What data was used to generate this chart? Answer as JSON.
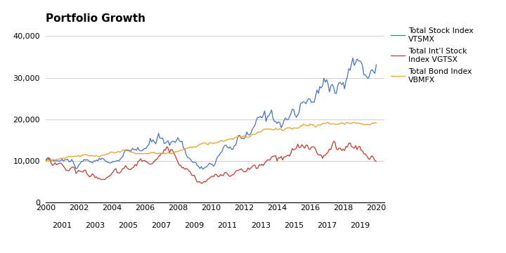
{
  "title": "Portfolio Growth",
  "title_fontsize": 11,
  "title_fontweight": "bold",
  "background_color": "#ffffff",
  "grid_color": "#d0d0d0",
  "ylim": [
    0,
    42000
  ],
  "yticks": [
    0,
    10000,
    20000,
    30000,
    40000
  ],
  "ytick_labels": [
    "0",
    "10,000",
    "20,000",
    "30,000",
    "40,000"
  ],
  "xlim": [
    2000,
    2020.5
  ],
  "xticks_even": [
    2000,
    2002,
    2004,
    2006,
    2008,
    2010,
    2012,
    2014,
    2016,
    2018,
    2020
  ],
  "xticks_odd": [
    2001,
    2003,
    2005,
    2007,
    2009,
    2011,
    2013,
    2015,
    2017,
    2019
  ],
  "legend": [
    {
      "label": "Total Stock Index\nVTSMX",
      "color": "#4472c4"
    },
    {
      "label": "Total Int’l Stock\nIndex VGTSX",
      "color": "#c0392b"
    },
    {
      "label": "Total Bond Index\nVBMFX",
      "color": "#e8a020"
    }
  ],
  "line_width": 0.9
}
